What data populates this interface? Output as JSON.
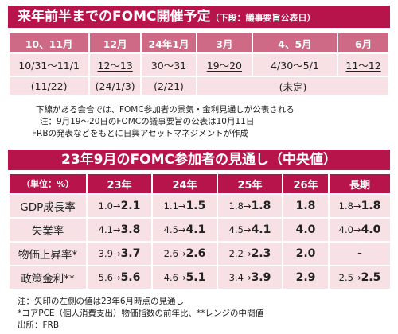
{
  "schedule": {
    "title": "来年前半までのFOMC開催予定",
    "subtitle": "（下段：議事要旨公表日）",
    "headers": [
      "10、11月",
      "12月",
      "24年1月",
      "3月",
      "4、5月",
      "6月"
    ],
    "dates": [
      {
        "text": "10/31〜11/1",
        "underline": false
      },
      {
        "text": "12〜13",
        "underline": true
      },
      {
        "text": "30〜31",
        "underline": false
      },
      {
        "text": "19〜20",
        "underline": true
      },
      {
        "text": "4/30〜5/1",
        "underline": false
      },
      {
        "text": "11〜12",
        "underline": true
      }
    ],
    "publish": [
      "(11/22)",
      "(24/1/3)",
      "(2/21)",
      "(未定)"
    ],
    "notes": [
      "下線がある会合では、FOMC参加者の景気・金利見通しが公表される",
      "注：9月19〜20日のFOMCの議事要旨の公表は10月11日",
      "FRBの発表などをもとに日興アセットマネジメントが作成"
    ]
  },
  "projection": {
    "title": "23年9月のFOMC参加者の見通し（中央値）",
    "unit_label": "（単位：%）",
    "columns": [
      "23年",
      "24年",
      "25年",
      "26年",
      "長期"
    ],
    "rows": [
      {
        "label": "GDP成長率",
        "cells": [
          {
            "from": "1.0",
            "to": "2.1"
          },
          {
            "from": "1.1",
            "to": "1.5"
          },
          {
            "from": "1.8",
            "to": "1.8"
          },
          {
            "value": "1.8"
          },
          {
            "from": "1.8",
            "to": "1.8"
          }
        ]
      },
      {
        "label": "失業率",
        "cells": [
          {
            "from": "4.1",
            "to": "3.8"
          },
          {
            "from": "4.5",
            "to": "4.1"
          },
          {
            "from": "4.5",
            "to": "4.1"
          },
          {
            "value": "4.0"
          },
          {
            "from": "4.0",
            "to": "4.0"
          }
        ]
      },
      {
        "label": "物価上昇率*",
        "cells": [
          {
            "from": "3.9",
            "to": "3.7"
          },
          {
            "from": "2.6",
            "to": "2.6"
          },
          {
            "from": "2.2",
            "to": "2.3"
          },
          {
            "value": "2.0"
          },
          {
            "value": "-"
          }
        ]
      },
      {
        "label": "政策金利**",
        "cells": [
          {
            "from": "5.6",
            "to": "5.6"
          },
          {
            "from": "4.6",
            "to": "5.1"
          },
          {
            "from": "3.4",
            "to": "3.9"
          },
          {
            "value": "2.9"
          },
          {
            "from": "2.5",
            "to": "2.5"
          }
        ]
      }
    ],
    "arrow": "→",
    "notes": [
      "注：矢印の左側の値は23年6月時点の見通し",
      "*コアPCE（個人消費支出）物価指数の前年比、**レンジの中間値",
      "出所：FRB"
    ]
  }
}
